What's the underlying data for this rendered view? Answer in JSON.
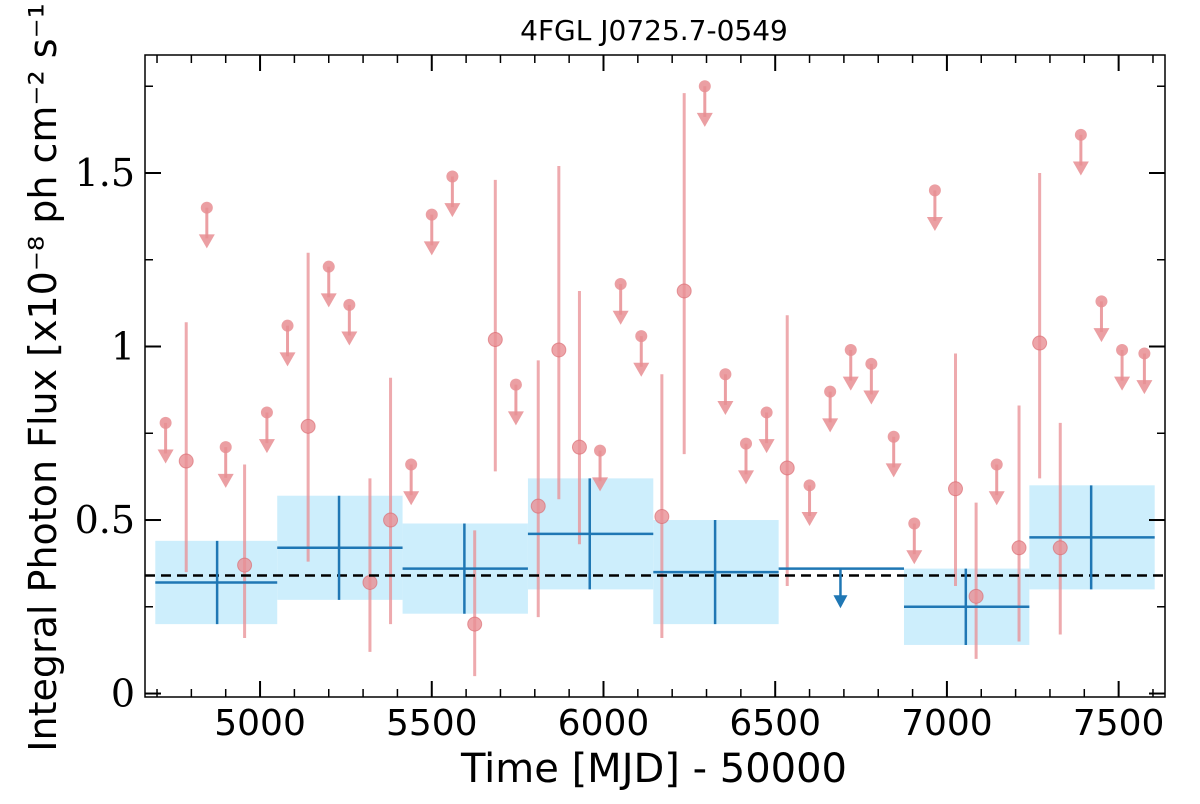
{
  "chart_data": {
    "type": "scatter",
    "title": "4FGL J0725.7-0549",
    "xlabel": "Time [MJD] - 50000",
    "ylabel": "Integral Photon Flux [x10⁻⁸ ph cm⁻² s⁻¹]",
    "xlim": [
      4665,
      7635
    ],
    "ylim": [
      -0.01,
      1.84
    ],
    "x_ticks": [
      5000,
      5500,
      6000,
      6500,
      7000,
      7500
    ],
    "x_tick_labels": [
      "5000",
      "5500",
      "6000",
      "6500",
      "7000",
      "7500"
    ],
    "y_ticks": [
      0,
      0.5,
      1,
      1.5
    ],
    "y_tick_labels": [
      "0",
      "0.5",
      "1",
      "1.5"
    ],
    "grid": false,
    "average_flux": 0.34,
    "colors": {
      "short_bins": "#e88e93",
      "long_bins": "#1f77b4",
      "long_bin_band": "#cdeefc",
      "average_line": "#000000"
    },
    "short_bins_detections": [
      {
        "x": 4785,
        "y": 0.67,
        "yerr_low": 0.32,
        "yerr_high": 0.4
      },
      {
        "x": 4955,
        "y": 0.37,
        "yerr_low": 0.21,
        "yerr_high": 0.29
      },
      {
        "x": 5140,
        "y": 0.77,
        "yerr_low": 0.39,
        "yerr_high": 0.5
      },
      {
        "x": 5320,
        "y": 0.32,
        "yerr_low": 0.2,
        "yerr_high": 0.3
      },
      {
        "x": 5380,
        "y": 0.5,
        "yerr_low": 0.3,
        "yerr_high": 0.41
      },
      {
        "x": 5625,
        "y": 0.2,
        "yerr_low": 0.15,
        "yerr_high": 0.27
      },
      {
        "x": 5685,
        "y": 1.02,
        "yerr_low": 0.38,
        "yerr_high": 0.46
      },
      {
        "x": 5810,
        "y": 0.54,
        "yerr_low": 0.32,
        "yerr_high": 0.42
      },
      {
        "x": 5870,
        "y": 0.99,
        "yerr_low": 0.43,
        "yerr_high": 0.53
      },
      {
        "x": 5930,
        "y": 0.71,
        "yerr_low": 0.28,
        "yerr_high": 0.45
      },
      {
        "x": 6170,
        "y": 0.51,
        "yerr_low": 0.35,
        "yerr_high": 0.41
      },
      {
        "x": 6235,
        "y": 1.16,
        "yerr_low": 0.47,
        "yerr_high": 0.57
      },
      {
        "x": 6535,
        "y": 0.65,
        "yerr_low": 0.34,
        "yerr_high": 0.44
      },
      {
        "x": 7025,
        "y": 0.59,
        "yerr_low": 0.28,
        "yerr_high": 0.39
      },
      {
        "x": 7085,
        "y": 0.28,
        "yerr_low": 0.18,
        "yerr_high": 0.27
      },
      {
        "x": 7210,
        "y": 0.42,
        "yerr_low": 0.27,
        "yerr_high": 0.41
      },
      {
        "x": 7270,
        "y": 1.01,
        "yerr_low": 0.39,
        "yerr_high": 0.49
      },
      {
        "x": 7330,
        "y": 0.42,
        "yerr_low": 0.25,
        "yerr_high": 0.36
      }
    ],
    "short_bins_upper_limits": [
      {
        "x": 4725,
        "y": 0.78
      },
      {
        "x": 4845,
        "y": 1.4
      },
      {
        "x": 4900,
        "y": 0.71
      },
      {
        "x": 5020,
        "y": 0.81
      },
      {
        "x": 5080,
        "y": 1.06
      },
      {
        "x": 5200,
        "y": 1.23
      },
      {
        "x": 5260,
        "y": 1.12
      },
      {
        "x": 5440,
        "y": 0.66
      },
      {
        "x": 5500,
        "y": 1.38
      },
      {
        "x": 5560,
        "y": 1.49
      },
      {
        "x": 5745,
        "y": 0.89
      },
      {
        "x": 5990,
        "y": 0.7
      },
      {
        "x": 6050,
        "y": 1.18
      },
      {
        "x": 6110,
        "y": 1.03
      },
      {
        "x": 6295,
        "y": 1.75
      },
      {
        "x": 6355,
        "y": 0.92
      },
      {
        "x": 6415,
        "y": 0.72
      },
      {
        "x": 6475,
        "y": 0.81
      },
      {
        "x": 6600,
        "y": 0.6
      },
      {
        "x": 6660,
        "y": 0.87
      },
      {
        "x": 6720,
        "y": 0.99
      },
      {
        "x": 6780,
        "y": 0.95
      },
      {
        "x": 6845,
        "y": 0.74
      },
      {
        "x": 6905,
        "y": 0.49
      },
      {
        "x": 6965,
        "y": 1.45
      },
      {
        "x": 7145,
        "y": 0.66
      },
      {
        "x": 7390,
        "y": 1.61
      },
      {
        "x": 7450,
        "y": 1.13
      },
      {
        "x": 7510,
        "y": 0.99
      },
      {
        "x": 7575,
        "y": 0.98
      }
    ],
    "long_bins_detections": [
      {
        "x_start": 4695,
        "x_end": 5050,
        "x_mid": 4875,
        "y": 0.32,
        "yerr": 0.12
      },
      {
        "x_start": 5050,
        "x_end": 5415,
        "x_mid": 5230,
        "y": 0.42,
        "yerr": 0.15
      },
      {
        "x_start": 5415,
        "x_end": 5780,
        "x_mid": 5595,
        "y": 0.36,
        "yerr": 0.13
      },
      {
        "x_start": 5780,
        "x_end": 6145,
        "x_mid": 5960,
        "y": 0.46,
        "yerr": 0.16
      },
      {
        "x_start": 6145,
        "x_end": 6510,
        "x_mid": 6325,
        "y": 0.35,
        "yerr": 0.15
      },
      {
        "x_start": 6875,
        "x_end": 7240,
        "x_mid": 7055,
        "y": 0.25,
        "yerr": 0.11
      },
      {
        "x_start": 7240,
        "x_end": 7605,
        "x_mid": 7420,
        "y": 0.45,
        "yerr": 0.15
      }
    ],
    "long_bins_upper_limits": [
      {
        "x_start": 6510,
        "x_end": 6875,
        "x_mid": 6690,
        "y": 0.36
      }
    ]
  }
}
